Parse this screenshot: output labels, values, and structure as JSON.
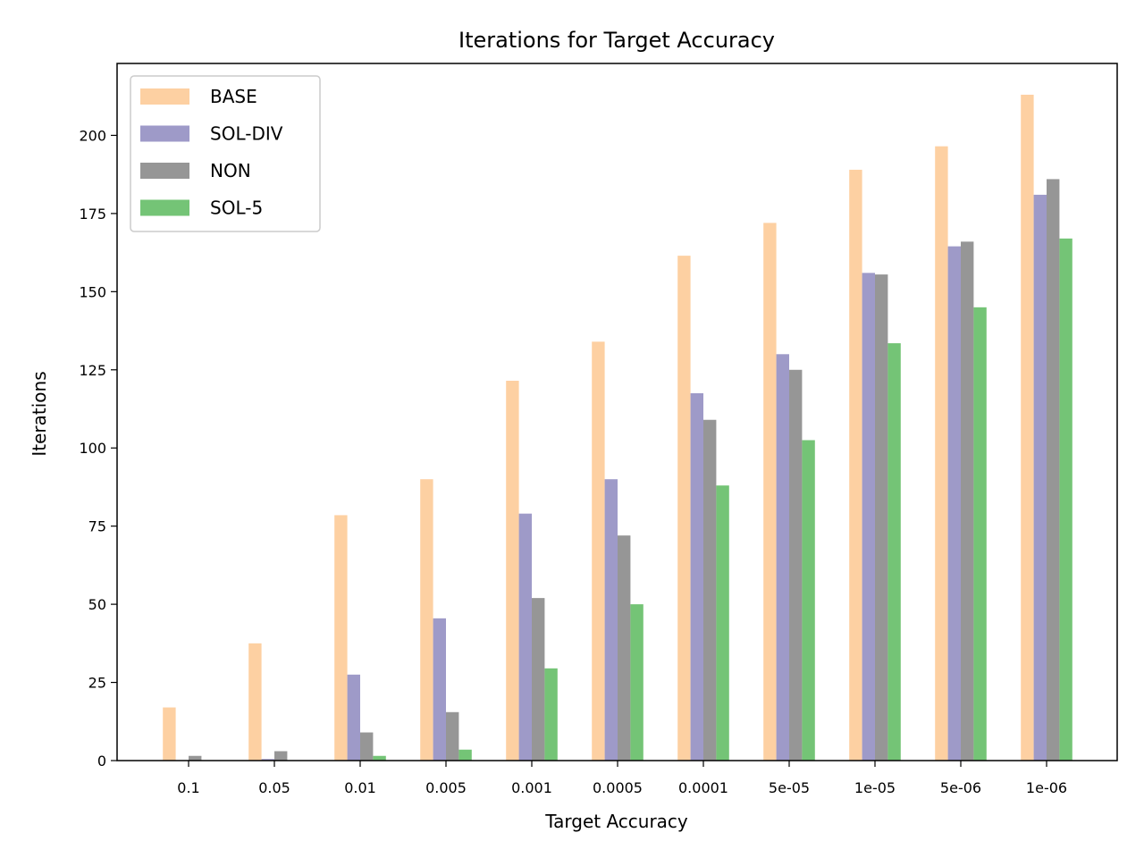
{
  "chart_data": {
    "type": "bar",
    "title": "Iterations for Target Accuracy",
    "xlabel": "Target Accuracy",
    "ylabel": "Iterations",
    "categories": [
      "0.1",
      "0.05",
      "0.01",
      "0.005",
      "0.001",
      "0.0005",
      "0.0001",
      "5e-05",
      "1e-05",
      "5e-06",
      "1e-06"
    ],
    "ylim": [
      0,
      223
    ],
    "yticks": [
      0,
      25,
      50,
      75,
      100,
      125,
      150,
      175,
      200
    ],
    "grid": false,
    "legend_position": "top-left",
    "series": [
      {
        "name": "BASE",
        "color": "#fdd0a2",
        "values": [
          17,
          37.5,
          78.5,
          90,
          121.5,
          134,
          161.5,
          172,
          189,
          196.5,
          213
        ]
      },
      {
        "name": "SOL-DIV",
        "color": "#9e9ac8",
        "values": [
          0,
          0.5,
          27.5,
          45.5,
          79,
          90,
          117.5,
          130,
          156,
          164.5,
          181
        ]
      },
      {
        "name": "NON",
        "color": "#969696",
        "values": [
          1.5,
          3,
          9,
          15.5,
          52,
          72,
          109,
          125,
          155.5,
          166,
          186
        ]
      },
      {
        "name": "SOL-5",
        "color": "#74c476",
        "values": [
          0,
          0,
          1.5,
          3.5,
          29.5,
          50,
          88,
          102.5,
          133.5,
          145,
          167
        ]
      }
    ]
  }
}
